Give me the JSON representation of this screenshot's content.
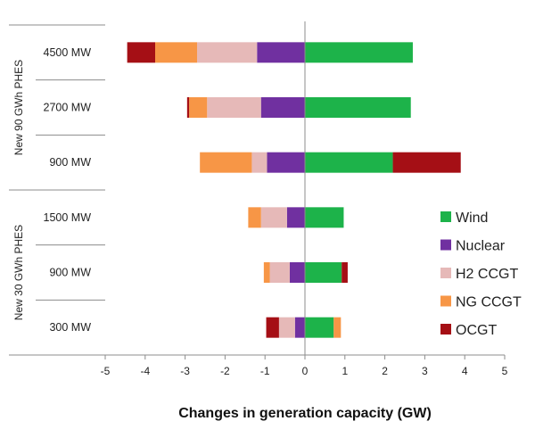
{
  "chart_data": {
    "type": "bar",
    "orientation": "horizontal",
    "stacked": true,
    "xlabel": "Changes in generation capacity (GW)",
    "xlim": [
      -5,
      5
    ],
    "xticks": [
      "-5",
      "-4",
      "-3",
      "-2",
      "-1",
      "0",
      "1",
      "2",
      "3",
      "4",
      "5"
    ],
    "groups": [
      {
        "label": "New 90 GWh PHES",
        "categories": [
          "4500 MW",
          "2700 MW",
          "900 MW"
        ]
      },
      {
        "label": "New 30 GWh PHES",
        "categories": [
          "1500 MW",
          "900 MW",
          "300 MW"
        ]
      }
    ],
    "series": [
      {
        "name": "Wind",
        "color": "#1db34a",
        "values": [
          2.7,
          2.65,
          2.2,
          0.97,
          0.92,
          0.72
        ]
      },
      {
        "name": "Nuclear",
        "color": "#7030a0",
        "values": [
          -1.2,
          -1.1,
          -0.95,
          -0.45,
          -0.38,
          -0.25
        ]
      },
      {
        "name": "H2 CCGT",
        "color": "#e6b9b8",
        "values": [
          -1.5,
          -1.35,
          -0.38,
          -0.65,
          -0.5,
          -0.4
        ]
      },
      {
        "name": "NG CCGT",
        "color": "#f79646",
        "values": [
          -1.05,
          -0.45,
          -1.3,
          -0.32,
          -0.15,
          0.18
        ]
      },
      {
        "name": "OCGT",
        "color": "#a50f15",
        "values": [
          -0.7,
          -0.05,
          1.7,
          0.0,
          0.15,
          -0.32
        ]
      }
    ],
    "legend": {
      "placement": "right"
    }
  }
}
